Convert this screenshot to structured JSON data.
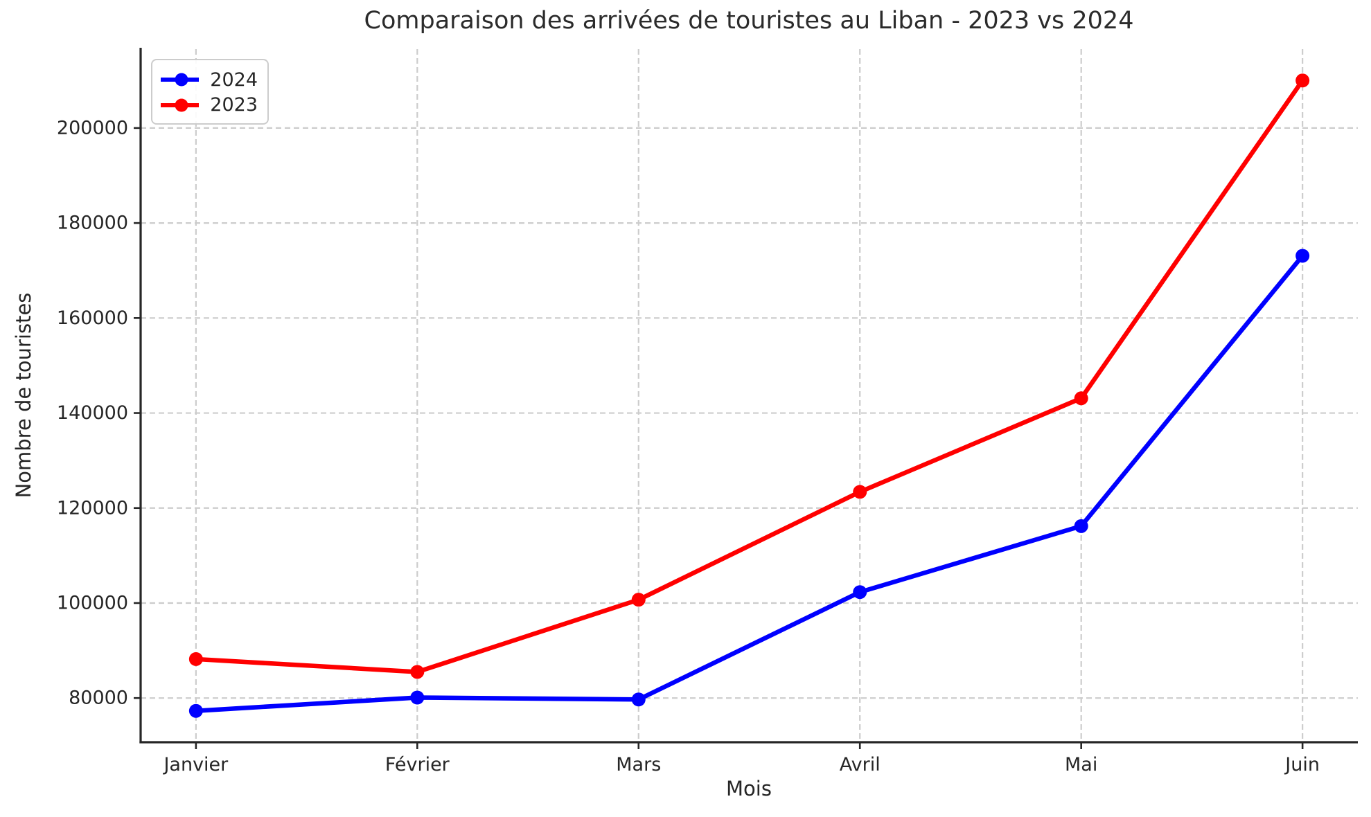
{
  "chart_data": {
    "type": "line",
    "title": "Comparaison des arrivées de touristes au Liban - 2023 vs 2024",
    "xlabel": "Mois",
    "ylabel": "Nombre de touristes",
    "categories": [
      "Janvier",
      "Février",
      "Mars",
      "Avril",
      "Mai",
      "Juin"
    ],
    "series": [
      {
        "name": "2024",
        "color": "#0000ff",
        "values": [
          77300,
          80100,
          79700,
          102300,
          116200,
          173100
        ]
      },
      {
        "name": "2023",
        "color": "#ff0000",
        "values": [
          88200,
          85500,
          100700,
          123400,
          143100,
          210000
        ]
      }
    ],
    "yticks": [
      80000,
      100000,
      120000,
      140000,
      160000,
      180000,
      200000
    ],
    "ylim": [
      70700,
      216600
    ],
    "grid": true,
    "grid_style": "dashed",
    "grid_color": "#cccccc",
    "spine_color": "#262626",
    "legend_position": "upper left",
    "marker": "circle"
  }
}
